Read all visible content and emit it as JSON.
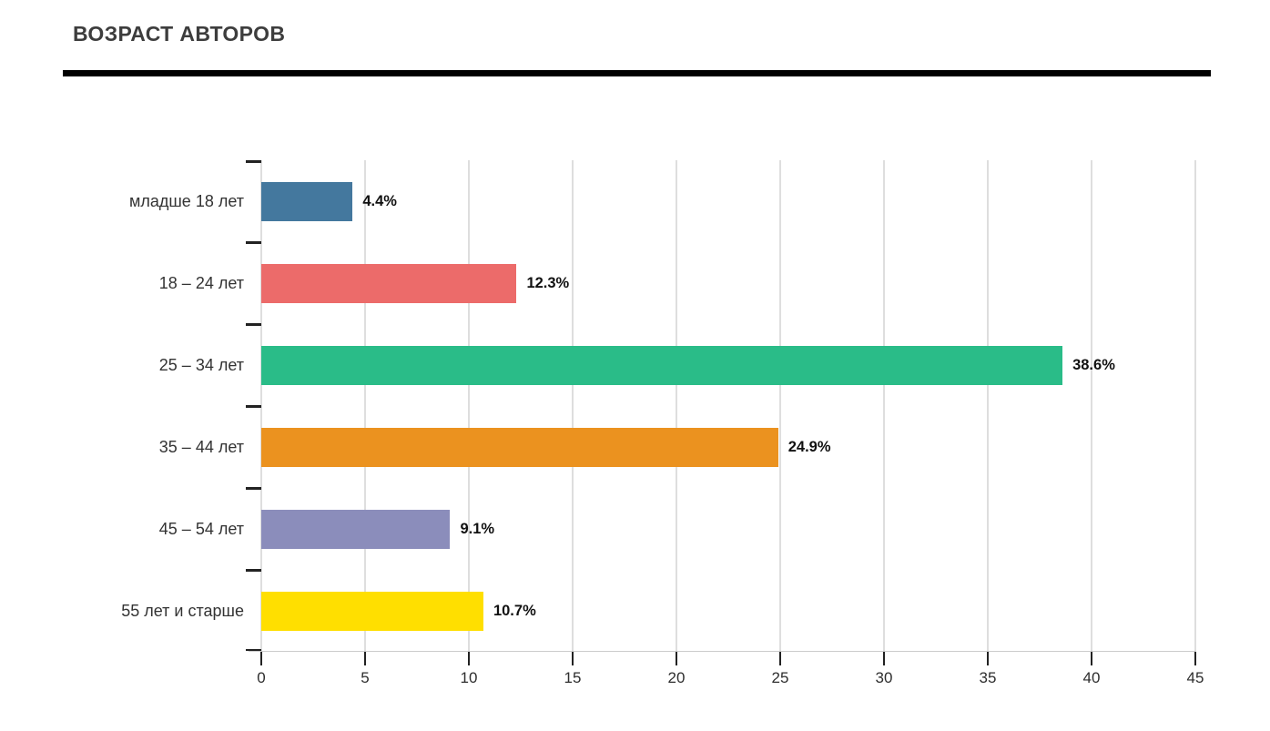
{
  "header": {
    "title": "ВОЗРАСТ АВТОРОВ",
    "title_color": "#3d3d3d",
    "rule_color": "#000000"
  },
  "chart_data": {
    "type": "bar",
    "orientation": "horizontal",
    "title": "ВОЗРАСТ АВТОРОВ",
    "categories": [
      "младше 18 лет",
      "18 – 24 лет",
      "25 – 34 лет",
      "35 – 44 лет",
      "45 – 54 лет",
      "55 лет и старше"
    ],
    "values": [
      4.4,
      12.3,
      38.6,
      24.9,
      9.1,
      10.7
    ],
    "value_labels": [
      "4.4%",
      "12.3%",
      "38.6%",
      "24.9%",
      "9.1%",
      "10.7%"
    ],
    "bar_colors": [
      "#44789e",
      "#ec6b6a",
      "#2abc88",
      "#eb921f",
      "#8b8dbb",
      "#ffdf00"
    ],
    "x_ticks": [
      0,
      5,
      10,
      15,
      20,
      25,
      30,
      35,
      40,
      45
    ],
    "xlim": [
      0,
      45
    ],
    "xlabel": "",
    "ylabel": "",
    "grid": "vertical",
    "legend": "none",
    "gridline_color": "#dedede",
    "axis_line_color": "#cccccc",
    "tick_mark_color": "#222222",
    "tick_label_color": "#2e2e2e",
    "category_label_color": "#333333",
    "value_label_color": "#111111",
    "background": "#ffffff"
  }
}
